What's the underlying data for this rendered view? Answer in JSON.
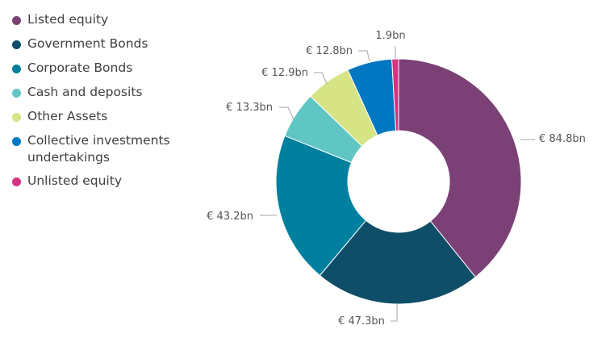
{
  "chart_data": {
    "type": "pie",
    "variant": "donut",
    "title": "",
    "unit": "€ bn",
    "legend_position": "left",
    "slices": [
      {
        "name": "Listed equity",
        "value": 84.8,
        "label": "€ 84.8bn",
        "color": "#7b4177"
      },
      {
        "name": "Government Bonds",
        "value": 47.3,
        "label": "€ 47.3bn",
        "color": "#0e4e68"
      },
      {
        "name": "Corporate Bonds",
        "value": 43.2,
        "label": "€ 43.2bn",
        "color": "#00809e"
      },
      {
        "name": "Cash and deposits",
        "value": 13.3,
        "label": "€ 13.3bn",
        "color": "#5fc6c4"
      },
      {
        "name": "Other Assets",
        "value": 12.9,
        "label": "€ 12.9bn",
        "color": "#d6e485"
      },
      {
        "name": "Collective investments undertakings",
        "value": 12.8,
        "label": "€ 12.8bn",
        "color": "#0077c0"
      },
      {
        "name": "Unlisted equity",
        "value": 1.9,
        "label": "1.9bn",
        "color": "#d63384"
      }
    ]
  },
  "legend": {
    "items": [
      {
        "line1": "Listed equity",
        "line2": ""
      },
      {
        "line1": "Government Bonds",
        "line2": ""
      },
      {
        "line1": "Corporate Bonds",
        "line2": ""
      },
      {
        "line1": "Cash and deposits",
        "line2": ""
      },
      {
        "line1": "Other Assets",
        "line2": ""
      },
      {
        "line1": "Collective investments",
        "line2": "undertakings"
      },
      {
        "line1": "Unlisted equity",
        "line2": ""
      }
    ]
  }
}
